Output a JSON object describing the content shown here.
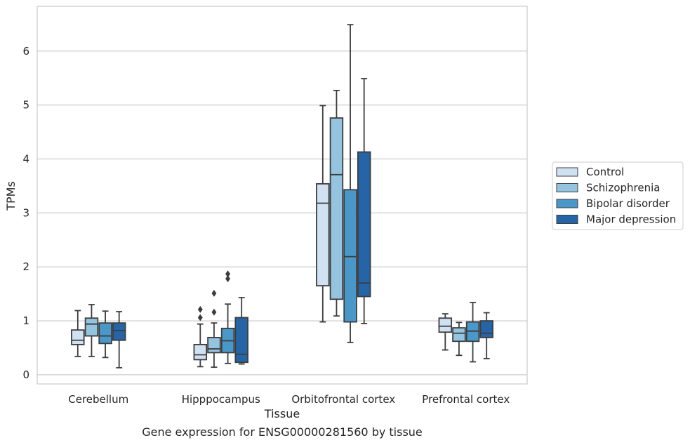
{
  "chart_data": {
    "type": "box",
    "xlabel": "Tissue",
    "ylabel": "TPMs",
    "caption": "Gene expression for ENSG00000281560 by tissue",
    "ylim": [
      -0.17,
      6.83
    ],
    "yticks": [
      0,
      1,
      2,
      3,
      4,
      5,
      6
    ],
    "grid": "horizontal",
    "legend_position": "right",
    "categories": [
      "Cerebellum",
      "Hipppocampus",
      "Orbitofrontal cortex",
      "Prefrontal cortex"
    ],
    "series": [
      {
        "name": "Control",
        "color": "#d0e1f2",
        "boxes": [
          {
            "whisker_low": 0.34,
            "q1": 0.56,
            "median": 0.64,
            "q3": 0.83,
            "whisker_high": 1.19,
            "outliers": []
          },
          {
            "whisker_low": 0.15,
            "q1": 0.28,
            "median": 0.37,
            "q3": 0.56,
            "whisker_high": 0.94,
            "outliers": [
              1.06,
              1.21
            ]
          },
          {
            "whisker_low": 0.98,
            "q1": 1.65,
            "median": 3.18,
            "q3": 3.54,
            "whisker_high": 4.99,
            "outliers": []
          },
          {
            "whisker_low": 0.46,
            "q1": 0.79,
            "median": 0.9,
            "q3": 1.05,
            "whisker_high": 1.13,
            "outliers": []
          }
        ]
      },
      {
        "name": "Schizophrenia",
        "color": "#94c4df",
        "boxes": [
          {
            "whisker_low": 0.34,
            "q1": 0.72,
            "median": 0.94,
            "q3": 1.05,
            "whisker_high": 1.3,
            "outliers": []
          },
          {
            "whisker_low": 0.14,
            "q1": 0.41,
            "median": 0.48,
            "q3": 0.69,
            "whisker_high": 0.96,
            "outliers": [
              1.16,
              1.51
            ]
          },
          {
            "whisker_low": 1.09,
            "q1": 1.4,
            "median": 3.71,
            "q3": 4.76,
            "whisker_high": 5.27,
            "outliers": []
          },
          {
            "whisker_low": 0.36,
            "q1": 0.62,
            "median": 0.77,
            "q3": 0.87,
            "whisker_high": 0.97,
            "outliers": []
          }
        ]
      },
      {
        "name": "Bipolar disorder",
        "color": "#4a98c9",
        "boxes": [
          {
            "whisker_low": 0.32,
            "q1": 0.58,
            "median": 0.72,
            "q3": 0.96,
            "whisker_high": 1.18,
            "outliers": []
          },
          {
            "whisker_low": 0.21,
            "q1": 0.41,
            "median": 0.63,
            "q3": 0.86,
            "whisker_high": 1.31,
            "outliers": [
              1.78,
              1.87
            ]
          },
          {
            "whisker_low": 0.6,
            "q1": 0.98,
            "median": 2.19,
            "q3": 3.43,
            "whisker_high": 6.49,
            "outliers": []
          },
          {
            "whisker_low": 0.24,
            "q1": 0.62,
            "median": 0.81,
            "q3": 0.98,
            "whisker_high": 1.34,
            "outliers": []
          }
        ]
      },
      {
        "name": "Major depression",
        "color": "#2565a7",
        "boxes": [
          {
            "whisker_low": 0.13,
            "q1": 0.64,
            "median": 0.82,
            "q3": 0.96,
            "whisker_high": 1.17,
            "outliers": []
          },
          {
            "whisker_low": 0.2,
            "q1": 0.23,
            "median": 0.38,
            "q3": 1.06,
            "whisker_high": 1.43,
            "outliers": []
          },
          {
            "whisker_low": 0.95,
            "q1": 1.45,
            "median": 1.7,
            "q3": 4.13,
            "whisker_high": 5.49,
            "outliers": []
          },
          {
            "whisker_low": 0.3,
            "q1": 0.69,
            "median": 0.77,
            "q3": 1.0,
            "whisker_high": 1.15,
            "outliers": []
          }
        ]
      }
    ]
  }
}
